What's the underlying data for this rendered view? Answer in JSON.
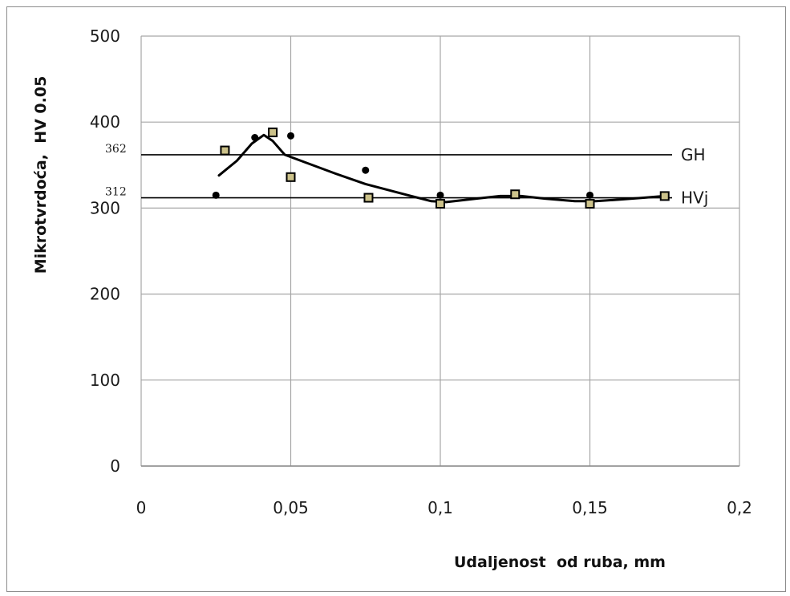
{
  "chart_data": {
    "type": "scatter",
    "xlabel": "Udaljenost  od ruba, mm",
    "ylabel": "Mikrotvrdoća,  HV 0.05",
    "xlim": [
      0,
      0.2
    ],
    "ylim": [
      0,
      500
    ],
    "x_ticks": [
      0,
      0.05,
      0.1,
      0.15,
      0.2
    ],
    "x_tick_labels": [
      "0",
      "0,05",
      "0,1",
      "0,15",
      "0,2"
    ],
    "y_ticks": [
      0,
      100,
      200,
      300,
      400,
      500
    ],
    "y_tick_labels": [
      "0",
      "100",
      "200",
      "300",
      "400",
      "500"
    ],
    "grid": true,
    "series": [
      {
        "marker": "circle",
        "color": "#000000",
        "points": [
          [
            0.025,
            315
          ],
          [
            0.038,
            382
          ],
          [
            0.05,
            384
          ],
          [
            0.075,
            344
          ],
          [
            0.1,
            315
          ],
          [
            0.125,
            316
          ],
          [
            0.15,
            315
          ],
          [
            0.175,
            315
          ]
        ]
      },
      {
        "marker": "square",
        "color": "#000000",
        "fill": "#ccc28a",
        "points": [
          [
            0.028,
            367
          ],
          [
            0.044,
            388
          ],
          [
            0.05,
            336
          ],
          [
            0.076,
            312
          ],
          [
            0.1,
            305
          ],
          [
            0.125,
            316
          ],
          [
            0.15,
            305
          ],
          [
            0.175,
            314
          ]
        ]
      }
    ],
    "trend_line": {
      "color": "#000000",
      "points": [
        [
          0.026,
          338
        ],
        [
          0.032,
          355
        ],
        [
          0.037,
          375
        ],
        [
          0.041,
          385
        ],
        [
          0.044,
          378
        ],
        [
          0.048,
          362
        ],
        [
          0.055,
          353
        ],
        [
          0.065,
          340
        ],
        [
          0.075,
          328
        ],
        [
          0.088,
          316
        ],
        [
          0.097,
          308
        ],
        [
          0.102,
          307
        ],
        [
          0.112,
          311
        ],
        [
          0.12,
          314
        ],
        [
          0.127,
          314
        ],
        [
          0.135,
          311
        ],
        [
          0.145,
          308
        ],
        [
          0.152,
          308
        ],
        [
          0.16,
          310
        ],
        [
          0.168,
          312
        ],
        [
          0.175,
          314
        ]
      ]
    },
    "reference_lines": [
      {
        "value": 362,
        "value_label": "362",
        "name": "GH"
      },
      {
        "value": 312,
        "value_label": "312",
        "name": "HVj"
      }
    ]
  }
}
